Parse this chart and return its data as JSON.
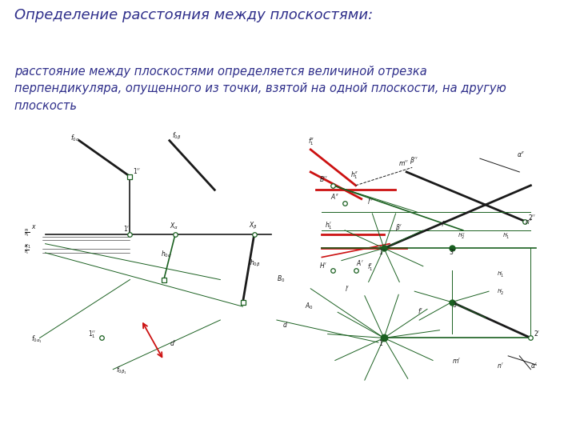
{
  "title": "Определение расстояния между плоскостями:",
  "body_text": "расстояние между плоскостями определяется величиной отрезка\nперпендикуляра, опущенного из точки, взятой на одной плоскости, на другую\nплоскость",
  "title_color": "#2e2e8a",
  "body_color": "#2e2e8a",
  "title_fontsize": 13,
  "body_fontsize": 10.5,
  "background_color": "#ffffff",
  "diagram_bg": "#f5f0ce",
  "dark_green": "#1a6020",
  "black_col": "#1a1a1a",
  "red_col": "#cc1111",
  "fig_width": 7.2,
  "fig_height": 5.4
}
